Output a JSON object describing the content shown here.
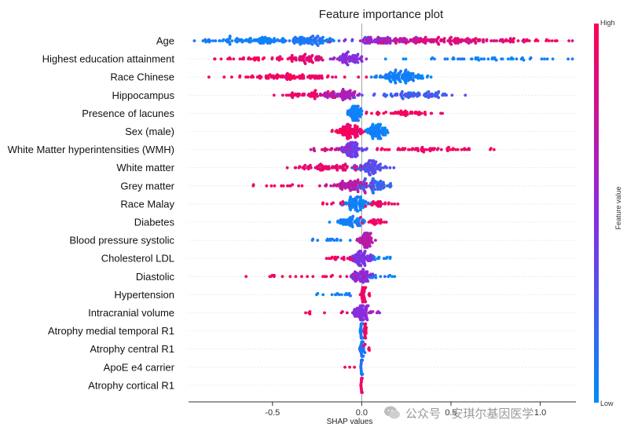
{
  "chart_data": {
    "type": "beeswarm",
    "title": "Feature importance plot",
    "xlabel": "SHAP values",
    "xlim": [
      -0.97,
      1.2
    ],
    "x_ticks": [
      -0.5,
      0.0,
      0.5,
      1.0
    ],
    "x_tick_labels": [
      "-0.5",
      "0.0",
      "0.5",
      "1.0"
    ],
    "colorbar": {
      "label": "Feature value",
      "high_label": "High",
      "low_label": "Low",
      "high_color": "#ff0052",
      "mid_color": "#8a2be2",
      "low_color": "#008bfb"
    },
    "features": [
      {
        "name": "Age",
        "clusters": [
          {
            "c": -0.5,
            "s": 0.22,
            "n": 120,
            "col": 0.05
          },
          {
            "c": -0.28,
            "s": 0.06,
            "n": 50,
            "col": 0.15
          },
          {
            "c": -0.78,
            "s": 0.08,
            "n": 12,
            "col": 0.05
          },
          {
            "c": 0.12,
            "s": 0.1,
            "n": 70,
            "col": 0.55
          },
          {
            "c": 0.5,
            "s": 0.2,
            "n": 120,
            "col": 0.85
          },
          {
            "c": 0.85,
            "s": 0.15,
            "n": 35,
            "col": 0.95
          }
        ]
      },
      {
        "name": "Highest education attainment",
        "clusters": [
          {
            "c": -0.55,
            "s": 0.15,
            "n": 50,
            "col": 0.95
          },
          {
            "c": -0.3,
            "s": 0.05,
            "n": 40,
            "col": 0.85
          },
          {
            "c": -0.08,
            "s": 0.05,
            "n": 70,
            "col": 0.5
          },
          {
            "c": 0.7,
            "s": 0.25,
            "n": 50,
            "col": 0.05
          }
        ]
      },
      {
        "name": "Race Chinese",
        "clusters": [
          {
            "c": -0.4,
            "s": 0.16,
            "n": 90,
            "col": 0.95
          },
          {
            "c": 0.2,
            "s": 0.07,
            "n": 110,
            "col": 0.05
          }
        ]
      },
      {
        "name": "Hippocampus",
        "clusters": [
          {
            "c": -0.3,
            "s": 0.09,
            "n": 45,
            "col": 0.95
          },
          {
            "c": -0.12,
            "s": 0.06,
            "n": 70,
            "col": 0.65
          },
          {
            "c": 0.3,
            "s": 0.12,
            "n": 80,
            "col": 0.25
          }
        ]
      },
      {
        "name": "Presence of lacunes",
        "clusters": [
          {
            "c": -0.04,
            "s": 0.02,
            "n": 70,
            "col": 0.05
          },
          {
            "c": 0.25,
            "s": 0.1,
            "n": 50,
            "col": 0.95
          }
        ]
      },
      {
        "name": "Sex (male)",
        "clusters": [
          {
            "c": -0.07,
            "s": 0.04,
            "n": 90,
            "col": 0.95
          },
          {
            "c": 0.08,
            "s": 0.03,
            "n": 80,
            "col": 0.05
          }
        ]
      },
      {
        "name": "White Matter hyperintensities (WMH)",
        "clusters": [
          {
            "c": -0.05,
            "s": 0.03,
            "n": 80,
            "col": 0.4
          },
          {
            "c": -0.17,
            "s": 0.07,
            "n": 20,
            "col": 0.8
          },
          {
            "c": 0.35,
            "s": 0.15,
            "n": 60,
            "col": 0.95
          }
        ]
      },
      {
        "name": "White matter",
        "clusters": [
          {
            "c": -0.2,
            "s": 0.1,
            "n": 70,
            "col": 0.9
          },
          {
            "c": 0.05,
            "s": 0.04,
            "n": 80,
            "col": 0.3
          }
        ]
      },
      {
        "name": "Grey matter",
        "clusters": [
          {
            "c": -0.05,
            "s": 0.06,
            "n": 80,
            "col": 0.7
          },
          {
            "c": 0.08,
            "s": 0.05,
            "n": 70,
            "col": 0.2
          },
          {
            "c": -0.35,
            "s": 0.12,
            "n": 15,
            "col": 0.95
          }
        ]
      },
      {
        "name": "Race Malay",
        "clusters": [
          {
            "c": -0.03,
            "s": 0.025,
            "n": 80,
            "col": 0.05
          },
          {
            "c": 0.1,
            "s": 0.05,
            "n": 25,
            "col": 0.95
          },
          {
            "c": -0.15,
            "s": 0.06,
            "n": 10,
            "col": 0.95
          }
        ]
      },
      {
        "name": "Diabetes",
        "clusters": [
          {
            "c": -0.06,
            "s": 0.04,
            "n": 60,
            "col": 0.05
          },
          {
            "c": 0.07,
            "s": 0.03,
            "n": 25,
            "col": 0.95
          }
        ]
      },
      {
        "name": "Blood pressure systolic",
        "clusters": [
          {
            "c": 0.02,
            "s": 0.02,
            "n": 70,
            "col": 0.7
          },
          {
            "c": -0.18,
            "s": 0.05,
            "n": 15,
            "col": 0.05
          }
        ]
      },
      {
        "name": "Cholesterol LDL",
        "clusters": [
          {
            "c": 0.0,
            "s": 0.03,
            "n": 80,
            "col": 0.45
          },
          {
            "c": -0.1,
            "s": 0.06,
            "n": 20,
            "col": 0.95
          },
          {
            "c": 0.1,
            "s": 0.04,
            "n": 10,
            "col": 0.05
          }
        ]
      },
      {
        "name": "Diastolic",
        "clusters": [
          {
            "c": 0.0,
            "s": 0.03,
            "n": 60,
            "col": 0.5
          },
          {
            "c": -0.25,
            "s": 0.15,
            "n": 25,
            "col": 0.95
          },
          {
            "c": 0.12,
            "s": 0.05,
            "n": 12,
            "col": 0.1
          }
        ]
      },
      {
        "name": "Hypertension",
        "clusters": [
          {
            "c": 0.01,
            "s": 0.012,
            "n": 45,
            "col": 0.95
          },
          {
            "c": -0.15,
            "s": 0.09,
            "n": 15,
            "col": 0.05
          }
        ]
      },
      {
        "name": "Intracranial volume",
        "clusters": [
          {
            "c": 0.0,
            "s": 0.02,
            "n": 70,
            "col": 0.5
          },
          {
            "c": -0.25,
            "s": 0.08,
            "n": 8,
            "col": 0.95
          },
          {
            "c": 0.06,
            "s": 0.04,
            "n": 10,
            "col": 0.6
          }
        ]
      },
      {
        "name": "Atrophy medial temporal R1",
        "clusters": [
          {
            "c": 0.0,
            "s": 0.005,
            "n": 60,
            "col": 0.05
          },
          {
            "c": 0.02,
            "s": 0.004,
            "n": 20,
            "col": 0.95
          }
        ]
      },
      {
        "name": "Atrophy central R1",
        "clusters": [
          {
            "c": 0.0,
            "s": 0.007,
            "n": 45,
            "col": 0.1
          },
          {
            "c": 0.04,
            "s": 0.015,
            "n": 5,
            "col": 0.95
          }
        ]
      },
      {
        "name": "ApoE e4 carrier",
        "clusters": [
          {
            "c": 0.0,
            "s": 0.003,
            "n": 35,
            "col": 0.1
          },
          {
            "c": -0.06,
            "s": 0.04,
            "n": 3,
            "col": 0.95
          }
        ]
      },
      {
        "name": "Atrophy cortical R1",
        "clusters": [
          {
            "c": 0.0,
            "s": 0.002,
            "n": 30,
            "col": 0.95
          }
        ]
      }
    ]
  },
  "watermark": "公众号 · 安琪尔基因医学"
}
